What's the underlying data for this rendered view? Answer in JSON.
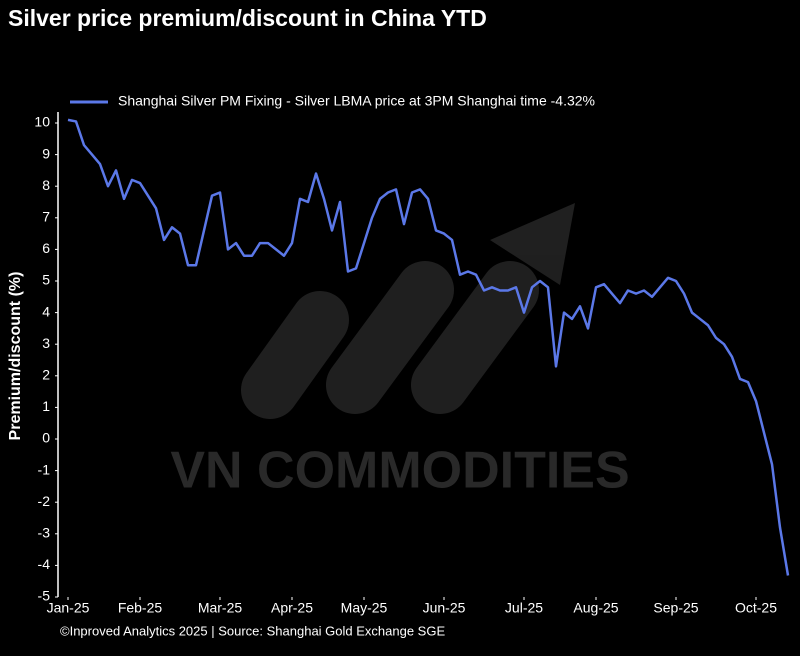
{
  "chart_data": {
    "type": "line",
    "title": "Silver price premium/discount in China YTD",
    "y_label": "Premium/discount (%)",
    "footer": "©Inproved Analytics 2025 | Source: Shanghai Gold Exchange SGE",
    "watermark": "VN COMMODITIES",
    "legend": "upper left",
    "xlim": [
      0,
      90
    ],
    "xticks": [
      {
        "value": 0,
        "label": "Jan-25"
      },
      {
        "value": 9,
        "label": "Feb-25"
      },
      {
        "value": 19,
        "label": "Mar-25"
      },
      {
        "value": 28,
        "label": "Apr-25"
      },
      {
        "value": 37,
        "label": "May-25"
      },
      {
        "value": 47,
        "label": "Jun-25"
      },
      {
        "value": 57,
        "label": "Jul-25"
      },
      {
        "value": 66,
        "label": "Aug-25"
      },
      {
        "value": 76,
        "label": "Sep-25"
      },
      {
        "value": 86,
        "label": "Oct-25"
      }
    ],
    "ylim": [
      -5,
      10
    ],
    "yticks": [
      -5,
      -4,
      -3,
      -2,
      -1,
      0,
      1,
      2,
      3,
      4,
      5,
      6,
      7,
      8,
      9,
      10
    ],
    "series": [
      {
        "name": "Shanghai Silver PM Fixing - Silver LBMA price at 3PM Shanghai time -4.32%",
        "color": "#5b78e8",
        "values": [
          10.1,
          10.05,
          9.3,
          9.0,
          8.7,
          8.0,
          8.5,
          7.6,
          8.2,
          8.1,
          7.7,
          7.3,
          6.3,
          6.7,
          6.5,
          5.5,
          5.5,
          6.6,
          7.7,
          7.8,
          6.0,
          6.2,
          5.8,
          5.8,
          6.2,
          6.2,
          6.0,
          5.8,
          6.2,
          7.6,
          7.5,
          8.4,
          7.6,
          6.6,
          7.5,
          5.3,
          5.4,
          6.2,
          7.0,
          7.6,
          7.8,
          7.9,
          6.8,
          7.8,
          7.9,
          7.6,
          6.6,
          6.5,
          6.3,
          5.2,
          5.3,
          5.2,
          4.7,
          4.8,
          4.7,
          4.7,
          4.8,
          4.0,
          4.8,
          5.0,
          4.8,
          2.3,
          4.0,
          3.8,
          4.2,
          3.5,
          4.8,
          4.9,
          4.6,
          4.3,
          4.7,
          4.6,
          4.7,
          4.5,
          4.8,
          5.1,
          5.0,
          4.6,
          4.0,
          3.8,
          3.6,
          3.2,
          3.0,
          2.6,
          1.9,
          1.8,
          1.2,
          0.2,
          -0.8,
          -2.8,
          -4.32
        ]
      }
    ]
  }
}
